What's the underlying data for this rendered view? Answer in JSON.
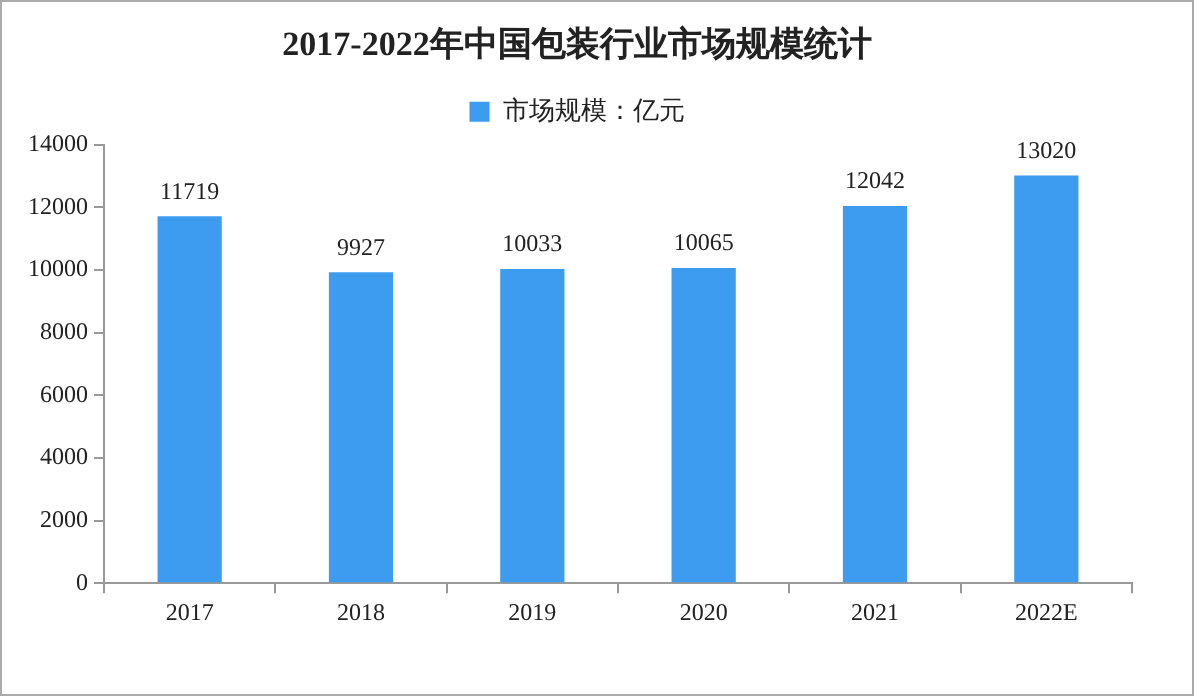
{
  "chart_data": {
    "type": "bar",
    "title": "2017-2022年中国包装行业市场规模统计",
    "categories": [
      "2017",
      "2018",
      "2019",
      "2020",
      "2021",
      "2022E"
    ],
    "series": [
      {
        "name": "市场规模：亿元",
        "color": "#3d9cf0",
        "values": [
          11719,
          9927,
          10033,
          10065,
          12042,
          13020
        ]
      }
    ],
    "ylim": [
      0,
      14000
    ],
    "yticks": [
      0,
      2000,
      4000,
      6000,
      8000,
      10000,
      12000,
      14000
    ],
    "grid": false,
    "legend": "top",
    "data_labels": true
  }
}
